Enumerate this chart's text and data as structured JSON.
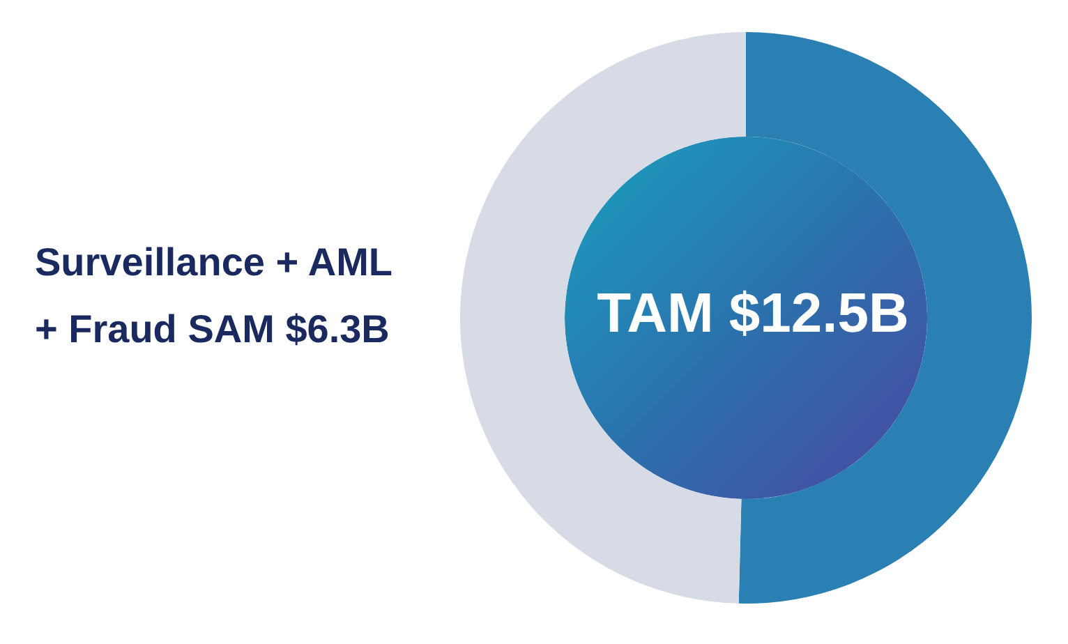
{
  "chart_data": {
    "type": "donut",
    "title": "TAM $12.5B",
    "categories": [
      null,
      null
    ],
    "values": [
      50.4,
      49.6
    ],
    "colors": [
      "#2a7fb3",
      "#d6dbe5"
    ],
    "annotations": [
      "Surveillance + AML + Fraud SAM $6.3B"
    ]
  }
}
